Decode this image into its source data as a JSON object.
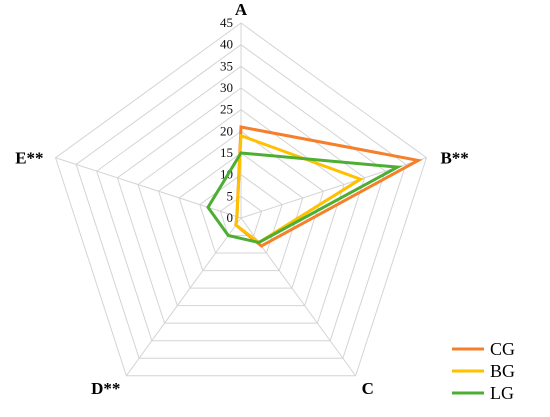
{
  "chart_data": {
    "type": "radar",
    "axes": [
      "A",
      "B**",
      "C",
      "D**",
      "E**"
    ],
    "r_ticks": [
      "0",
      "5",
      "10",
      "15",
      "20",
      "25",
      "30",
      "35",
      "40",
      "45"
    ],
    "rlim": [
      0,
      45
    ],
    "grid": true,
    "legend_position": "bottom-right",
    "series": [
      {
        "name": "CG",
        "color": "#F57F2A",
        "values": [
          21,
          43,
          8,
          2,
          1
        ]
      },
      {
        "name": "BG",
        "color": "#FFC000",
        "values": [
          19,
          29,
          7,
          2,
          1
        ]
      },
      {
        "name": "LG",
        "color": "#4CAF33",
        "values": [
          15,
          38,
          7,
          5,
          8
        ]
      }
    ]
  }
}
